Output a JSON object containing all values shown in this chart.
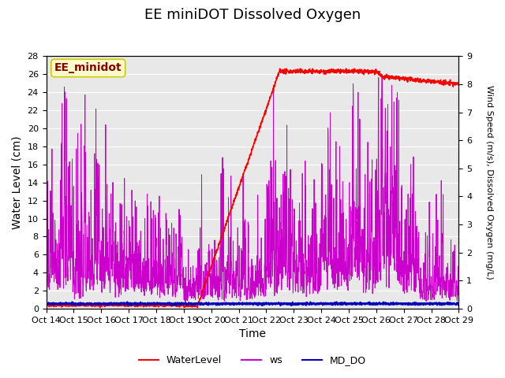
{
  "title": "EE miniDOT Dissolved Oxygen",
  "xlabel": "Time",
  "ylabel_left": "Water Level (cm)",
  "ylabel_right": "Wind Speed (m/s), Dissolved Oxygen (mg/L)",
  "ylim_left": [
    0,
    28
  ],
  "ylim_right": [
    0.0,
    9.0
  ],
  "yticks_left": [
    0,
    2,
    4,
    6,
    8,
    10,
    12,
    14,
    16,
    18,
    20,
    22,
    24,
    26,
    28
  ],
  "yticks_right": [
    0.0,
    1.0,
    2.0,
    3.0,
    4.0,
    5.0,
    6.0,
    7.0,
    8.0,
    9.0
  ],
  "xtick_labels": [
    "Oct 14",
    "Oct 15",
    "Oct 16",
    "Oct 17",
    "Oct 18",
    "Oct 19",
    "Oct 20",
    "Oct 21",
    "Oct 22",
    "Oct 23",
    "Oct 24",
    "Oct 25",
    "Oct 26",
    "Oct 27",
    "Oct 28",
    "Oct 29"
  ],
  "legend_entries": [
    "WaterLevel",
    "ws",
    "MD_DO"
  ],
  "annotation_text": "EE_minidot",
  "annotation_color": "#8b0000",
  "annotation_bg": "#ffffcc",
  "annotation_edge": "#cccc00",
  "bg_color": "#e8e8e8",
  "fig_bg": "#ffffff",
  "wl_color": "#ff0000",
  "ws_color": "#cc00cc",
  "do_color": "#0000bb",
  "grid_color": "#ffffff",
  "title_fontsize": 13,
  "label_fontsize": 10,
  "tick_fontsize": 8,
  "legend_fontsize": 9
}
